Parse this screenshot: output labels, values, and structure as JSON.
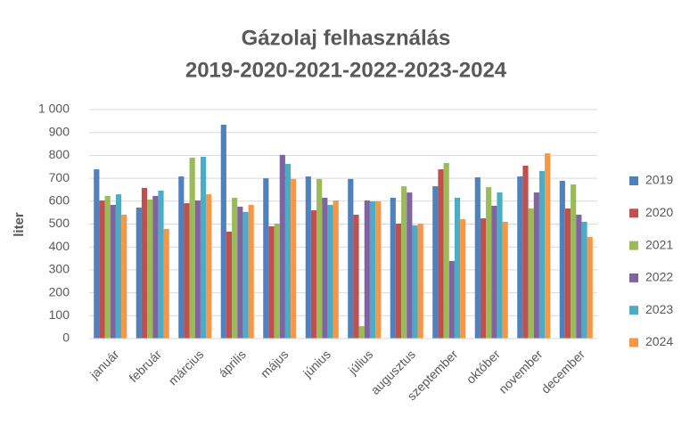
{
  "chart_data": {
    "type": "bar",
    "title": [
      "Gázolaj felhasználás",
      "2019-2020-2021-2022-2023-2024"
    ],
    "y_label": "liter",
    "categories": [
      "január",
      "február",
      "március",
      "április",
      "május",
      "június",
      "július",
      "augusztus",
      "szeptember",
      "október",
      "november",
      "december"
    ],
    "series": [
      {
        "name": "2019",
        "color": "#4f81bd",
        "values": [
          739,
          572,
          708,
          934,
          700,
          708,
          697,
          615,
          665,
          704,
          708,
          689
        ]
      },
      {
        "name": "2020",
        "color": "#c0504d",
        "values": [
          603,
          658,
          591,
          467,
          490,
          560,
          541,
          502,
          739,
          525,
          755,
          568
        ]
      },
      {
        "name": "2021",
        "color": "#9bbb59",
        "values": [
          623,
          607,
          790,
          615,
          502,
          697,
          54,
          665,
          767,
          661,
          568,
          673
        ]
      },
      {
        "name": "2022",
        "color": "#8064a2",
        "values": [
          584,
          623,
          603,
          576,
          802,
          615,
          603,
          638,
          339,
          580,
          638,
          541
        ]
      },
      {
        "name": "2023",
        "color": "#4bacc6",
        "values": [
          630,
          646,
          794,
          553,
          763,
          584,
          599,
          494,
          615,
          638,
          732,
          510
        ]
      },
      {
        "name": "2024",
        "color": "#f79646",
        "values": [
          541,
          479,
          630,
          584,
          697,
          603,
          599,
          502,
          521,
          510,
          809,
          444
        ]
      }
    ],
    "ylim": [
      0,
      1000
    ],
    "yticks": [
      0,
      100,
      200,
      300,
      400,
      500,
      600,
      700,
      800,
      900,
      {
        "value": 1000,
        "label": "1 000"
      }
    ],
    "grid": true,
    "legend": "right"
  }
}
